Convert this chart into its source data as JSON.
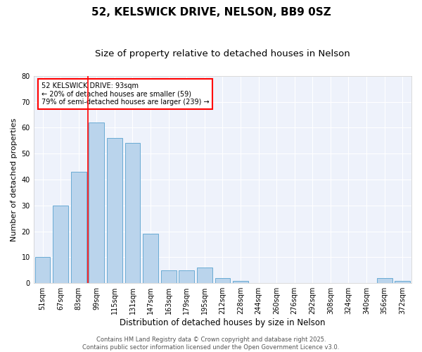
{
  "title1": "52, KELSWICK DRIVE, NELSON, BB9 0SZ",
  "title2": "Size of property relative to detached houses in Nelson",
  "xlabel": "Distribution of detached houses by size in Nelson",
  "ylabel": "Number of detached properties",
  "bar_labels": [
    "51sqm",
    "67sqm",
    "83sqm",
    "99sqm",
    "115sqm",
    "131sqm",
    "147sqm",
    "163sqm",
    "179sqm",
    "195sqm",
    "212sqm",
    "228sqm",
    "244sqm",
    "260sqm",
    "276sqm",
    "292sqm",
    "308sqm",
    "324sqm",
    "340sqm",
    "356sqm",
    "372sqm"
  ],
  "bar_values": [
    10,
    30,
    43,
    62,
    56,
    54,
    19,
    5,
    5,
    6,
    2,
    1,
    0,
    0,
    0,
    0,
    0,
    0,
    0,
    2,
    1
  ],
  "bar_color": "#bad4ec",
  "bar_edgecolor": "#6aabd4",
  "vline_color": "red",
  "vline_pos": 2.5,
  "annotation_text": "52 KELSWICK DRIVE: 93sqm\n← 20% of detached houses are smaller (59)\n79% of semi-detached houses are larger (239) →",
  "ylim": [
    0,
    80
  ],
  "yticks": [
    0,
    10,
    20,
    30,
    40,
    50,
    60,
    70,
    80
  ],
  "bg_color": "#eef2fb",
  "grid_color": "#ffffff",
  "footer_text": "Contains HM Land Registry data © Crown copyright and database right 2025.\nContains public sector information licensed under the Open Government Licence v3.0.",
  "title1_fontsize": 11,
  "title2_fontsize": 9.5,
  "ylabel_fontsize": 8,
  "xlabel_fontsize": 8.5,
  "tick_fontsize": 7,
  "annot_fontsize": 7,
  "footer_fontsize": 6
}
